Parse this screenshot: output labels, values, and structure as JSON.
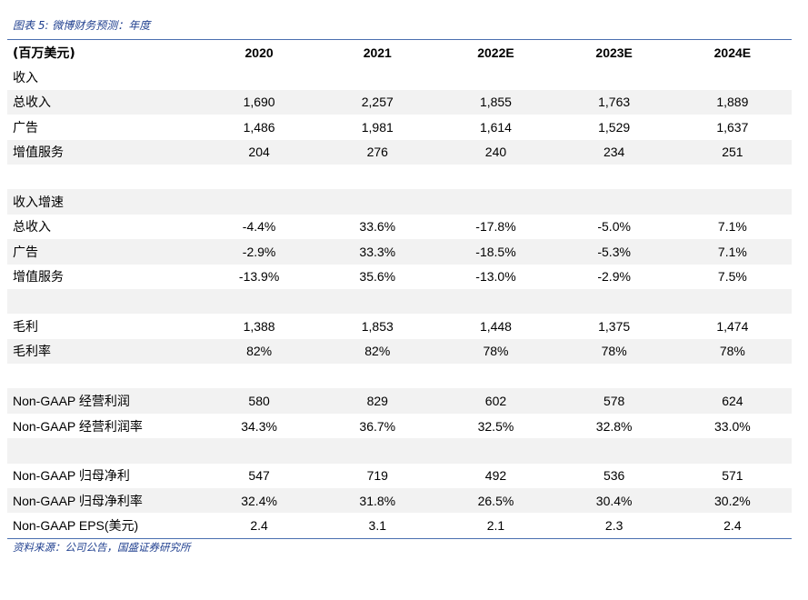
{
  "title": "图表 5: 微博财务预测：年度",
  "header": {
    "unit_label": "(百万美元)",
    "years": [
      "2020",
      "2021",
      "2022E",
      "2023E",
      "2024E"
    ]
  },
  "rows": [
    {
      "label": "收入",
      "values": [
        "",
        "",
        "",
        "",
        ""
      ],
      "shaded": false
    },
    {
      "label": "总收入",
      "values": [
        "1,690",
        "2,257",
        "1,855",
        "1,763",
        "1,889"
      ],
      "shaded": true
    },
    {
      "label": "广告",
      "values": [
        "1,486",
        "1,981",
        "1,614",
        "1,529",
        "1,637"
      ],
      "shaded": false
    },
    {
      "label": "增值服务",
      "values": [
        "204",
        "276",
        "240",
        "234",
        "251"
      ],
      "shaded": true
    },
    {
      "label": "",
      "values": [
        "",
        "",
        "",
        "",
        ""
      ],
      "shaded": false
    },
    {
      "label": "收入增速",
      "values": [
        "",
        "",
        "",
        "",
        ""
      ],
      "shaded": true
    },
    {
      "label": "总收入",
      "values": [
        "-4.4%",
        "33.6%",
        "-17.8%",
        "-5.0%",
        "7.1%"
      ],
      "shaded": false
    },
    {
      "label": "广告",
      "values": [
        "-2.9%",
        "33.3%",
        "-18.5%",
        "-5.3%",
        "7.1%"
      ],
      "shaded": true
    },
    {
      "label": "增值服务",
      "values": [
        "-13.9%",
        "35.6%",
        "-13.0%",
        "-2.9%",
        "7.5%"
      ],
      "shaded": false
    },
    {
      "label": "",
      "values": [
        "",
        "",
        "",
        "",
        ""
      ],
      "shaded": true
    },
    {
      "label": "毛利",
      "values": [
        "1,388",
        "1,853",
        "1,448",
        "1,375",
        "1,474"
      ],
      "shaded": false
    },
    {
      "label": "毛利率",
      "values": [
        "82%",
        "82%",
        "78%",
        "78%",
        "78%"
      ],
      "shaded": true
    },
    {
      "label": "",
      "values": [
        "",
        "",
        "",
        "",
        ""
      ],
      "shaded": false
    },
    {
      "label": "Non-GAAP 经营利润",
      "values": [
        "580",
        "829",
        "602",
        "578",
        "624"
      ],
      "shaded": true
    },
    {
      "label": "Non-GAAP 经营利润率",
      "values": [
        "34.3%",
        "36.7%",
        "32.5%",
        "32.8%",
        "33.0%"
      ],
      "shaded": false
    },
    {
      "label": "",
      "values": [
        "",
        "",
        "",
        "",
        ""
      ],
      "shaded": true
    },
    {
      "label": "Non-GAAP 归母净利",
      "values": [
        "547",
        "719",
        "492",
        "536",
        "571"
      ],
      "shaded": false
    },
    {
      "label": "Non-GAAP 归母净利率",
      "values": [
        "32.4%",
        "31.8%",
        "26.5%",
        "30.4%",
        "30.2%"
      ],
      "shaded": true
    },
    {
      "label": "Non-GAAP EPS(美元)",
      "values": [
        "2.4",
        "3.1",
        "2.1",
        "2.3",
        "2.4"
      ],
      "shaded": false
    }
  ],
  "source": "资料来源：公司公告，国盛证券研究所"
}
